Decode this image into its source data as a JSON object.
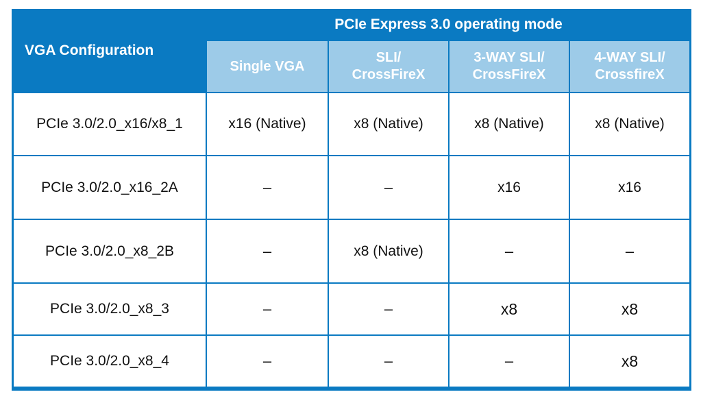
{
  "table": {
    "vga_config_label": "VGA Configuration",
    "operating_mode_label": "PCIe Express 3.0 operating mode",
    "columns": [
      {
        "line1": "Single VGA",
        "line2": ""
      },
      {
        "line1": "SLI/",
        "line2": "CrossFireX"
      },
      {
        "line1": "3-WAY SLI/",
        "line2": "CrossFireX"
      },
      {
        "line1": "4-WAY SLI/",
        "line2": "CrossfireX"
      }
    ],
    "rows": [
      {
        "slot": "PCIe 3.0/2.0_x16/x8_1",
        "values": [
          "x16 (Native)",
          "x8 (Native)",
          "x8 (Native)",
          "x8 (Native)"
        ]
      },
      {
        "slot": "PCIe 3.0/2.0_x16_2A",
        "values": [
          "–",
          "–",
          "x16",
          "x16"
        ]
      },
      {
        "slot": "PCIe 3.0/2.0_x8_2B",
        "values": [
          "–",
          "x8 (Native)",
          "–",
          "–"
        ]
      },
      {
        "slot": "PCIe 3.0/2.0_x8_3",
        "values": [
          "–",
          "–",
          "x8",
          "x8"
        ]
      },
      {
        "slot": "PCIe 3.0/2.0_x8_4",
        "values": [
          "–",
          "–",
          "–",
          "x8"
        ]
      }
    ]
  }
}
